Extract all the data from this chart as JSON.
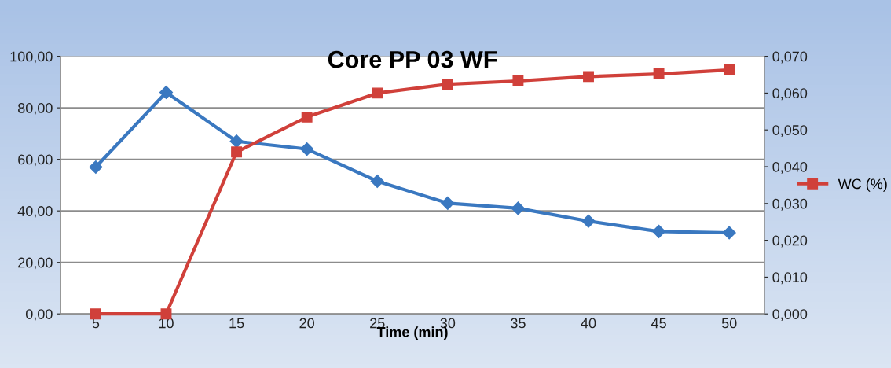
{
  "chart_data": {
    "type": "line",
    "title": "Core PP 03 WF",
    "xlabel": "Time (min)",
    "categories": [
      "5",
      "10",
      "15",
      "20",
      "25",
      "30",
      "35",
      "40",
      "45",
      "50"
    ],
    "series": [
      {
        "color": "#3a78c0",
        "marker": "diamond",
        "values": [
          57,
          86,
          67,
          64,
          51.5,
          43,
          41,
          36,
          32,
          31.5
        ]
      },
      {
        "name": "WC (%)",
        "color": "#d0403a",
        "marker": "square",
        "axis": "y2",
        "values": [
          0,
          0,
          0.044,
          0.0535,
          0.06,
          0.0624,
          0.0633,
          0.0645,
          0.0652,
          0.0663
        ]
      }
    ],
    "ylim": [
      0,
      100
    ],
    "yticks": [
      {
        "value": 0,
        "label": "0,00"
      },
      {
        "value": 20,
        "label": "20,00"
      },
      {
        "value": 40,
        "label": "40,00"
      },
      {
        "value": 60,
        "label": "60,00"
      },
      {
        "value": 80,
        "label": "80,00"
      },
      {
        "value": 100,
        "label": "100,00"
      }
    ],
    "y2lim": [
      0,
      0.07
    ],
    "y2ticks": [
      {
        "value": 0,
        "label": "0,000"
      },
      {
        "value": 0.01,
        "label": "0,010"
      },
      {
        "value": 0.02,
        "label": "0,020"
      },
      {
        "value": 0.03,
        "label": "0,030"
      },
      {
        "value": 0.04,
        "label": "0,040"
      },
      {
        "value": 0.05,
        "label": "0,050"
      },
      {
        "value": 0.06,
        "label": "0,060"
      },
      {
        "value": 0.07,
        "label": "0,070"
      }
    ],
    "grid": "y",
    "legend": "right"
  }
}
